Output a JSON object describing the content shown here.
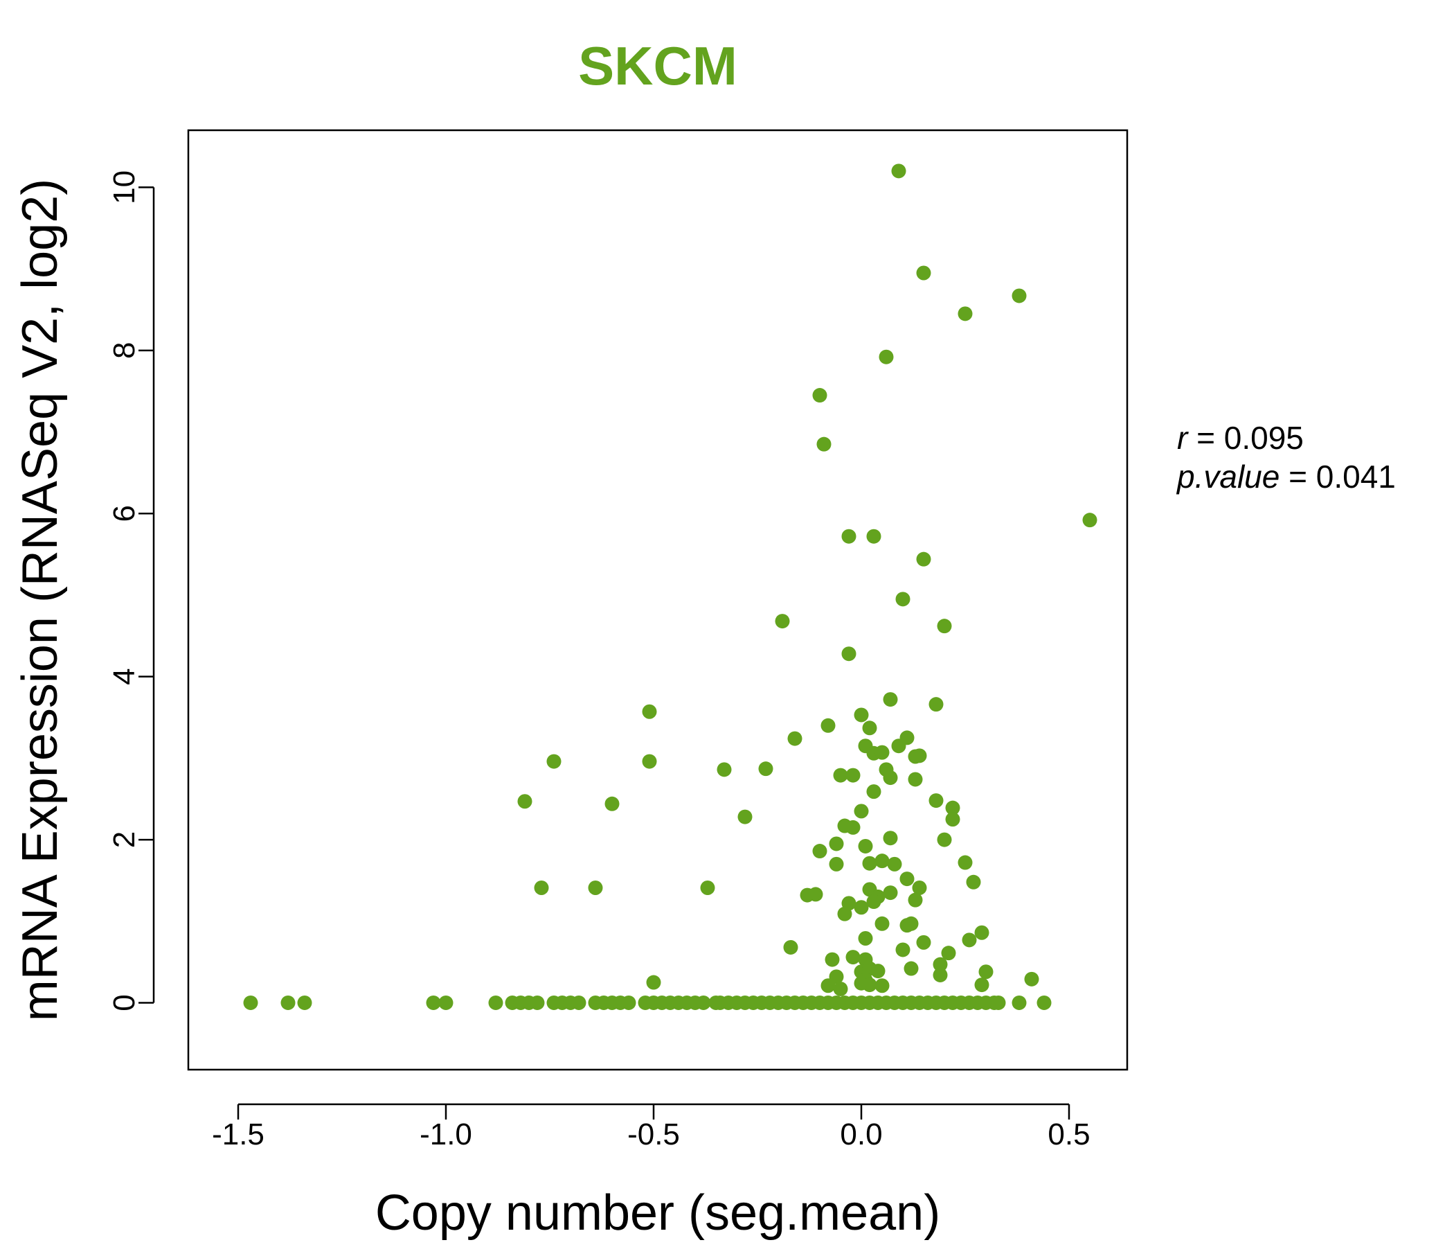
{
  "chart_data": {
    "type": "scatter",
    "title": "SKCM",
    "xlabel": "Copy number (seg.mean)",
    "ylabel": "mRNA Expression (RNASeq V2, log2)",
    "xlim": [
      -1.62,
      0.64
    ],
    "ylim": [
      -0.82,
      10.7
    ],
    "xticks": [
      -1.5,
      -1.0,
      -0.5,
      0.0,
      0.5
    ],
    "xtick_labels": [
      "-1.5",
      "-1.0",
      "-0.5",
      "0.0",
      "0.5"
    ],
    "yticks": [
      0,
      2,
      4,
      6,
      8,
      10
    ],
    "ytick_labels": [
      "0",
      "2",
      "4",
      "6",
      "8",
      "10"
    ],
    "stats": {
      "r_symbol": "r",
      "r_value": "0.095",
      "p_symbol": "p.value",
      "p_value": "0.041",
      "equals": "="
    },
    "colors": {
      "points": "#63A31E",
      "title": "#63A31E",
      "axis": "#000000"
    },
    "points": {
      "x": [
        0.09,
        0.15,
        0.38,
        0.25,
        0.06,
        -0.1,
        -0.09,
        0.55,
        -0.03,
        0.03,
        0.15,
        0.1,
        -0.19,
        0.2,
        -0.03,
        0.07,
        0.18,
        -0.51,
        -0.74,
        -0.51,
        -0.33,
        -0.23,
        -0.16,
        -0.08,
        0.0,
        0.02,
        0.01,
        0.03,
        0.05,
        0.09,
        0.11,
        0.13,
        0.14,
        0.06,
        0.13,
        -0.05,
        -0.02,
        0.07,
        0.03,
        0.18,
        0.22,
        0.22,
        -0.81,
        -0.6,
        -0.28,
        -0.04,
        -0.02,
        0.0,
        0.07,
        0.2,
        -0.06,
        0.01,
        -0.1,
        -0.06,
        0.05,
        0.02,
        0.08,
        0.25,
        0.11,
        0.27,
        -0.77,
        -0.64,
        -0.37,
        -0.13,
        -0.11,
        0.02,
        0.04,
        0.07,
        0.14,
        0.13,
        -0.03,
        0.0,
        0.03,
        -0.04,
        0.05,
        0.11,
        0.12,
        0.29,
        0.01,
        0.26,
        0.15,
        -0.17,
        0.1,
        0.21,
        -0.07,
        -0.02,
        0.01,
        0.19,
        0.0,
        0.02,
        0.04,
        0.12,
        0.3,
        0.19,
        -0.06,
        0.01,
        -0.08,
        0.0,
        0.02,
        0.05,
        -0.05,
        0.29,
        0.41,
        -0.5,
        -1.47,
        -1.38,
        -1.34,
        -1.03,
        -1.0,
        -0.88,
        -0.84,
        -0.82,
        -0.8,
        -0.78,
        -0.74,
        -0.72,
        -0.7,
        -0.68,
        -0.64,
        -0.62,
        -0.6,
        -0.58,
        -0.56,
        -0.52,
        -0.5,
        -0.48,
        -0.46,
        -0.44,
        -0.42,
        -0.4,
        -0.38,
        -0.35,
        -0.34,
        -0.32,
        -0.3,
        -0.28,
        -0.26,
        -0.24,
        -0.22,
        -0.2,
        -0.18,
        -0.16,
        -0.14,
        -0.12,
        -0.1,
        -0.08,
        -0.06,
        -0.04,
        -0.02,
        0.0,
        0.02,
        0.04,
        0.06,
        0.08,
        0.1,
        0.12,
        0.14,
        0.16,
        0.18,
        0.2,
        0.22,
        0.24,
        0.26,
        0.28,
        0.3,
        0.32,
        0.33,
        0.38,
        0.44
      ],
      "y": [
        10.2,
        8.95,
        8.67,
        8.45,
        7.92,
        7.45,
        6.85,
        5.92,
        5.72,
        5.72,
        5.44,
        4.95,
        4.68,
        4.62,
        4.28,
        3.72,
        3.66,
        3.57,
        2.96,
        2.96,
        2.86,
        2.87,
        3.24,
        3.4,
        3.53,
        3.37,
        3.15,
        3.06,
        3.07,
        3.15,
        3.25,
        3.02,
        3.03,
        2.86,
        2.74,
        2.79,
        2.79,
        2.76,
        2.59,
        2.48,
        2.39,
        2.25,
        2.47,
        2.44,
        2.28,
        2.17,
        2.15,
        2.35,
        2.02,
        2.0,
        1.95,
        1.92,
        1.86,
        1.7,
        1.74,
        1.71,
        1.7,
        1.72,
        1.52,
        1.48,
        1.41,
        1.41,
        1.41,
        1.32,
        1.33,
        1.39,
        1.3,
        1.35,
        1.41,
        1.26,
        1.22,
        1.17,
        1.24,
        1.09,
        0.97,
        0.95,
        0.97,
        0.86,
        0.79,
        0.77,
        0.74,
        0.68,
        0.65,
        0.61,
        0.53,
        0.56,
        0.53,
        0.47,
        0.38,
        0.42,
        0.39,
        0.42,
        0.38,
        0.34,
        0.32,
        0.28,
        0.21,
        0.24,
        0.22,
        0.21,
        0.17,
        0.22,
        0.29,
        0.25,
        0,
        0,
        0,
        0,
        0,
        0,
        0,
        0,
        0,
        0,
        0,
        0,
        0,
        0,
        0,
        0,
        0,
        0,
        0,
        0,
        0,
        0,
        0,
        0,
        0,
        0,
        0,
        0,
        0,
        0,
        0,
        0,
        0,
        0,
        0,
        0,
        0,
        0,
        0,
        0,
        0,
        0,
        0,
        0,
        0,
        0,
        0,
        0,
        0,
        0,
        0,
        0,
        0,
        0,
        0,
        0,
        0,
        0,
        0,
        0,
        0,
        0,
        0,
        0,
        0
      ]
    }
  }
}
